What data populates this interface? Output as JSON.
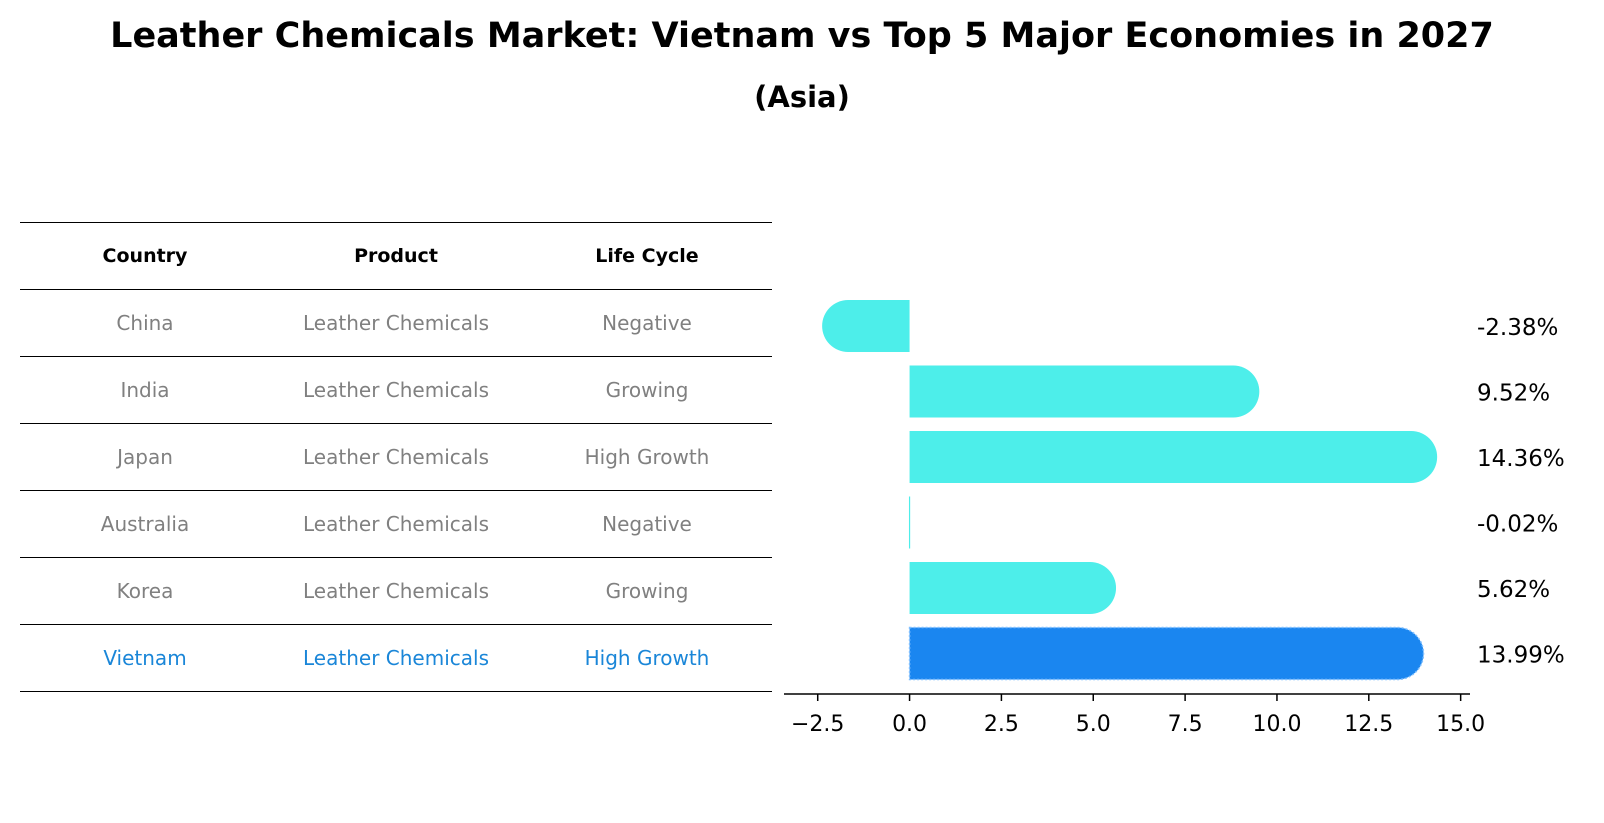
{
  "chart_data": {
    "type": "bar",
    "orientation": "horizontal",
    "title": "Leather Chemicals Market: Vietnam vs Top 5 Major Economies in 2027",
    "subtitle": "(Asia)",
    "categories": [
      "China",
      "India",
      "Japan",
      "Australia",
      "Korea",
      "Vietnam"
    ],
    "values": [
      -2.38,
      9.52,
      14.36,
      -0.02,
      5.62,
      13.99
    ],
    "value_labels": [
      "-2.38%",
      "9.52%",
      "14.36%",
      "-0.02%",
      "5.62%",
      "13.99%"
    ],
    "highlight": "Vietnam",
    "xlim": [
      -3.2,
      15.2
    ],
    "xticks": [
      -2.5,
      0.0,
      2.5,
      5.0,
      7.5,
      10.0,
      12.5,
      15.0
    ],
    "xtick_labels": [
      "−2.5",
      "0.0",
      "2.5",
      "5.0",
      "7.5",
      "10.0",
      "12.5",
      "15.0"
    ],
    "xlabel": "",
    "ylabel": "",
    "colors": {
      "bar": "#4deeea",
      "highlight_bar": "#1a86f0",
      "highlight_text": "#1a86d8"
    }
  },
  "table": {
    "headers": [
      "Country",
      "Product",
      "Life Cycle"
    ],
    "rows": [
      [
        "China",
        "Leather Chemicals",
        "Negative"
      ],
      [
        "India",
        "Leather Chemicals",
        "Growing"
      ],
      [
        "Japan",
        "Leather Chemicals",
        "High Growth"
      ],
      [
        "Australia",
        "Leather Chemicals",
        "Negative"
      ],
      [
        "Korea",
        "Leather Chemicals",
        "Growing"
      ],
      [
        "Vietnam",
        "Leather Chemicals",
        "High Growth"
      ]
    ]
  }
}
